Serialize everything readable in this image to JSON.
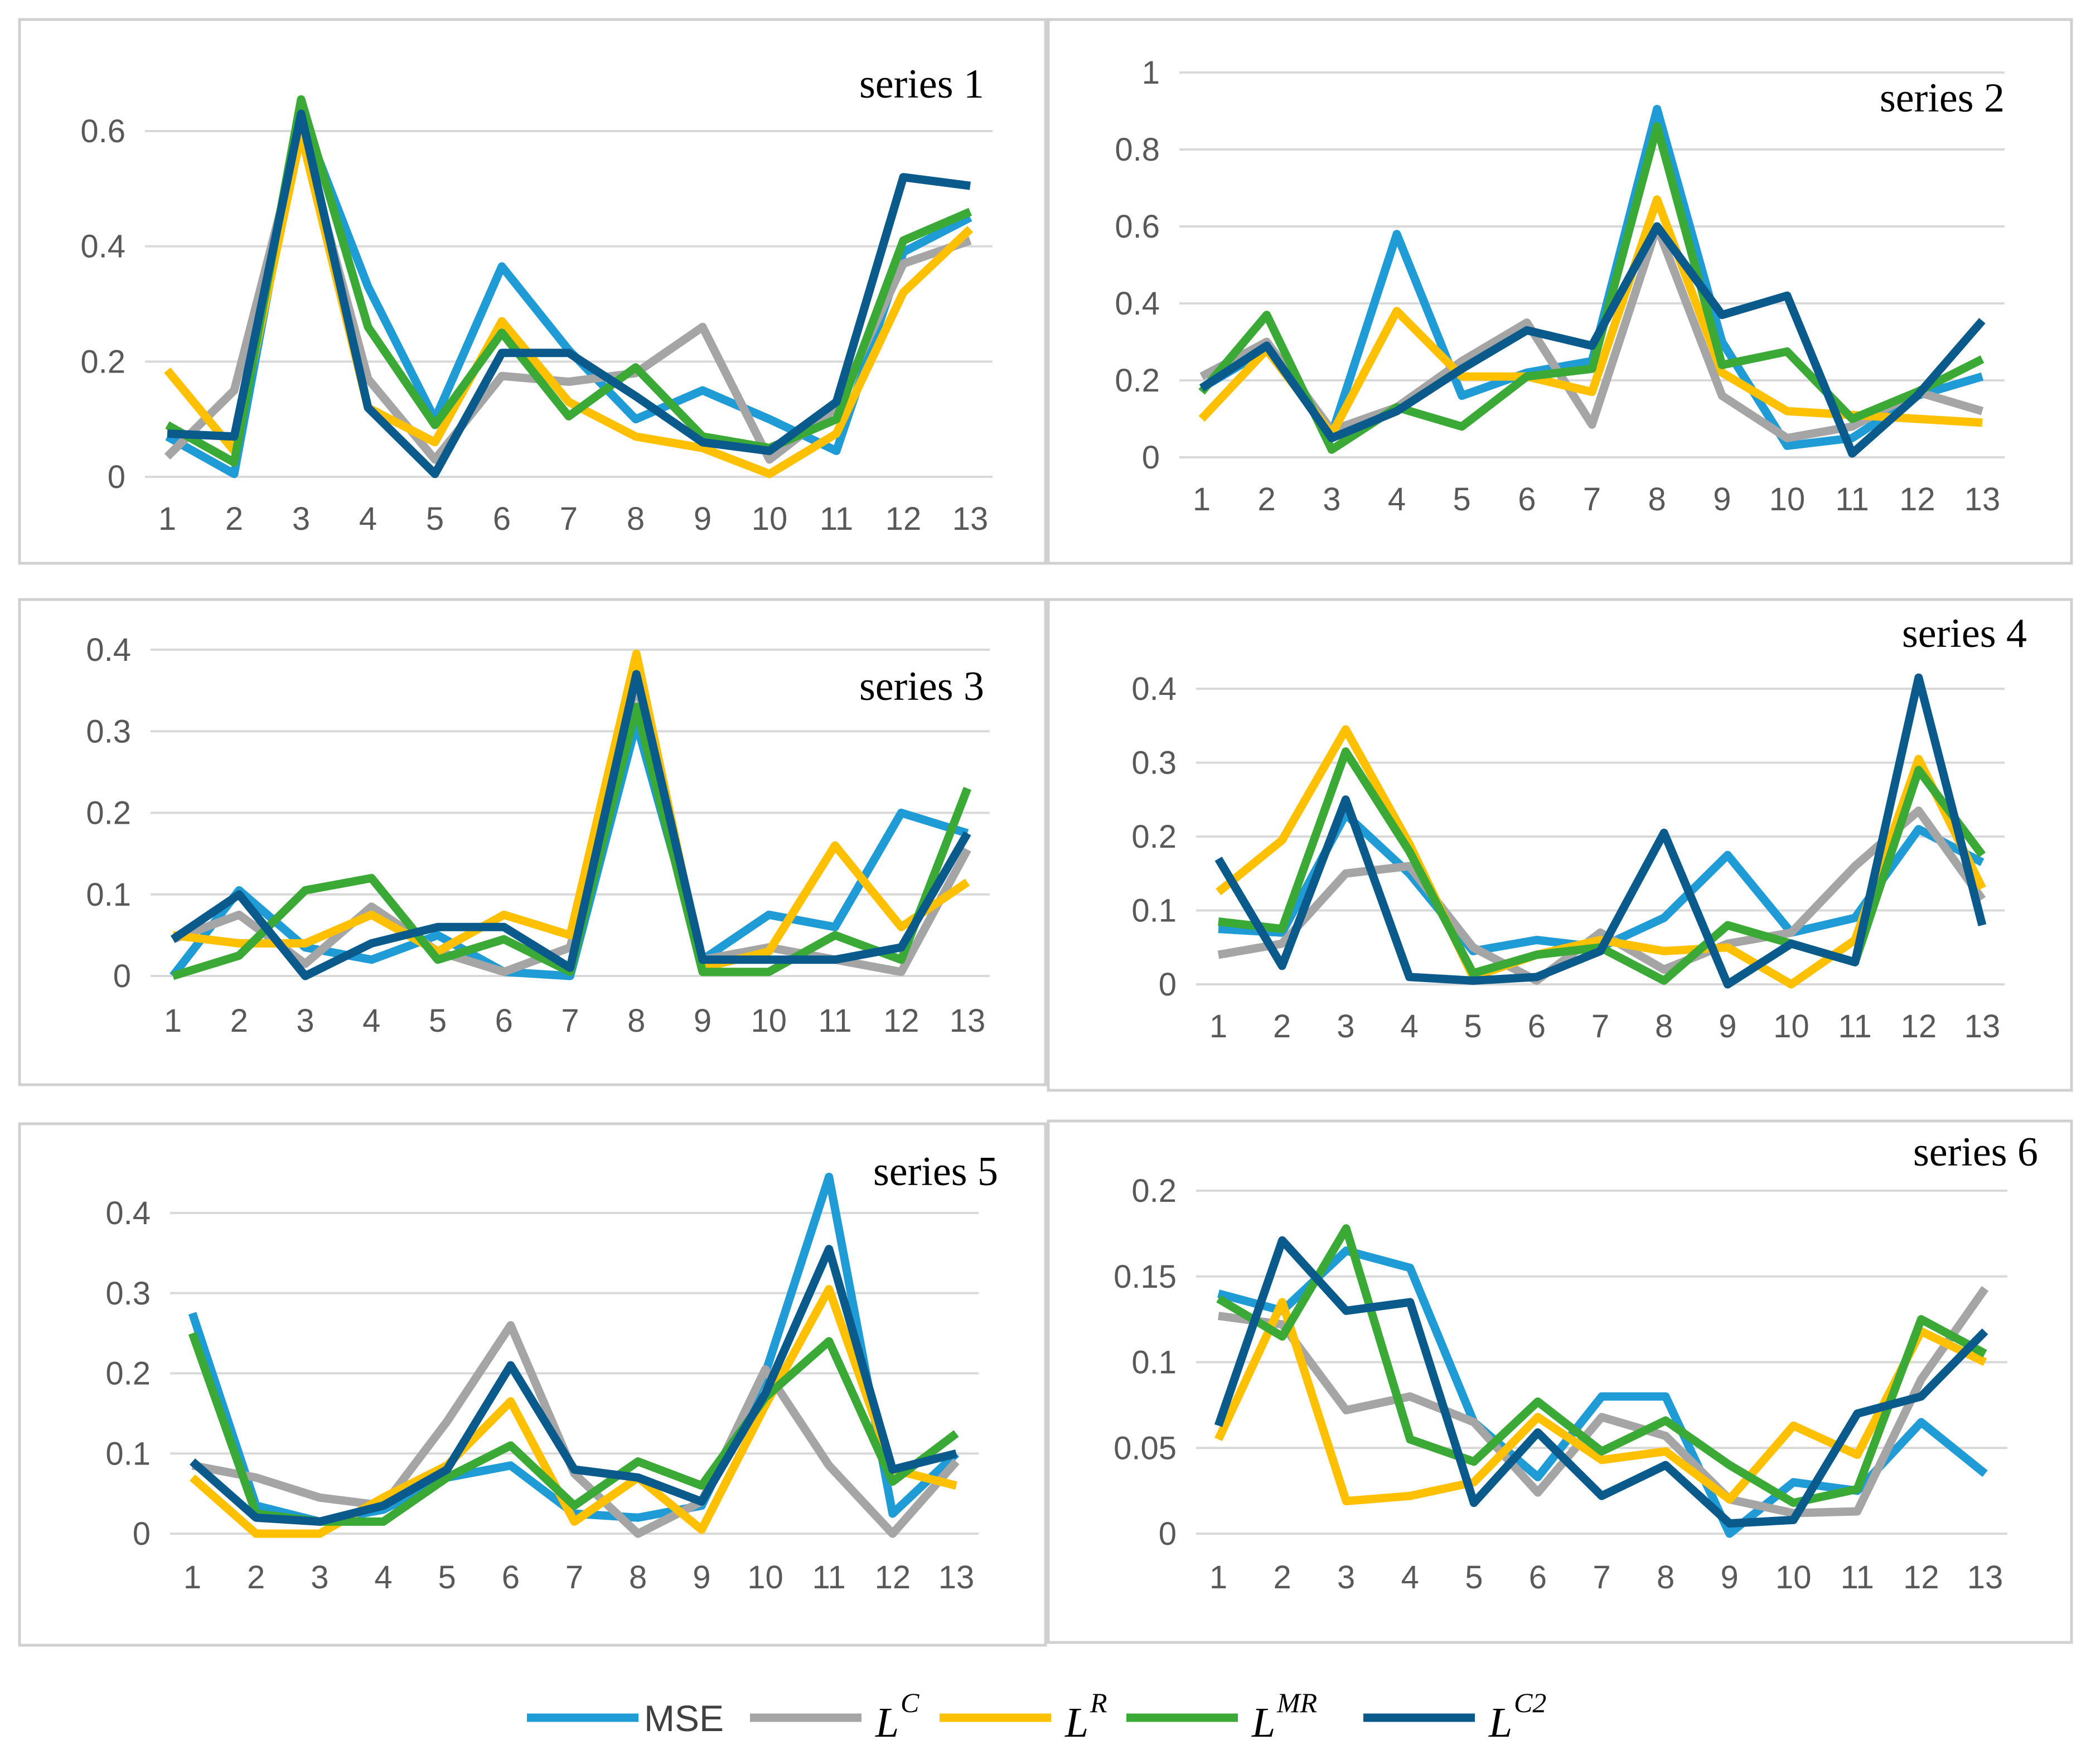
{
  "colors": {
    "MSE": "#1f9bd6",
    "LC": "#a5a5a5",
    "LR": "#ffc000",
    "LMR": "#3aa935",
    "LC2": "#0b5a8c"
  },
  "legend": [
    {
      "key": "MSE",
      "text": "MSE",
      "math": false
    },
    {
      "key": "LC",
      "base": "L",
      "sup": "C",
      "math": true
    },
    {
      "key": "LR",
      "base": "L",
      "sup": "R",
      "math": true
    },
    {
      "key": "LMR",
      "base": "L",
      "sup": "MR",
      "math": true
    },
    {
      "key": "LC2",
      "base": "L",
      "sup": "C2",
      "math": true
    }
  ],
  "chart_data": [
    {
      "type": "line",
      "title": "series 1",
      "categories": [
        "1",
        "2",
        "3",
        "4",
        "5",
        "6",
        "7",
        "8",
        "9",
        "10",
        "11",
        "12",
        "13"
      ],
      "ylim": [
        0,
        0.6
      ],
      "yticks": [
        0,
        0.2,
        0.4,
        0.6
      ],
      "ytick_labels": [
        "0",
        "0.2",
        "0.4",
        "0.6"
      ],
      "series": [
        {
          "name": "MSE",
          "values": [
            0.07,
            0.005,
            0.63,
            0.33,
            0.1,
            0.365,
            0.22,
            0.1,
            0.15,
            0.1,
            0.045,
            0.39,
            0.45
          ]
        },
        {
          "name": "LC",
          "values": [
            0.035,
            0.15,
            0.6,
            0.17,
            0.03,
            0.175,
            0.165,
            0.18,
            0.26,
            0.03,
            0.12,
            0.37,
            0.41
          ]
        },
        {
          "name": "LR",
          "values": [
            0.185,
            0.045,
            0.595,
            0.12,
            0.06,
            0.27,
            0.13,
            0.07,
            0.05,
            0.005,
            0.075,
            0.32,
            0.43
          ]
        },
        {
          "name": "LMR",
          "values": [
            0.09,
            0.025,
            0.655,
            0.26,
            0.09,
            0.25,
            0.105,
            0.19,
            0.07,
            0.05,
            0.1,
            0.41,
            0.46
          ]
        },
        {
          "name": "LC2",
          "values": [
            0.075,
            0.07,
            0.63,
            0.12,
            0.005,
            0.215,
            0.215,
            0.14,
            0.06,
            0.045,
            0.13,
            0.52,
            0.505
          ]
        }
      ]
    },
    {
      "type": "line",
      "title": "series 2",
      "categories": [
        "1",
        "2",
        "3",
        "4",
        "5",
        "6",
        "7",
        "8",
        "9",
        "10",
        "11",
        "12",
        "13"
      ],
      "ylim": [
        0,
        1
      ],
      "yticks": [
        0,
        0.2,
        0.4,
        0.6,
        0.8,
        1
      ],
      "ytick_labels": [
        "0",
        "0.2",
        "0.4",
        "0.6",
        "0.8",
        "1"
      ],
      "series": [
        {
          "name": "MSE",
          "values": [
            0.18,
            0.28,
            0.06,
            0.58,
            0.16,
            0.22,
            0.25,
            0.905,
            0.3,
            0.03,
            0.05,
            0.16,
            0.21
          ]
        },
        {
          "name": "LC",
          "values": [
            0.21,
            0.3,
            0.07,
            0.13,
            0.25,
            0.35,
            0.085,
            0.6,
            0.16,
            0.05,
            0.08,
            0.17,
            0.12
          ]
        },
        {
          "name": "LR",
          "values": [
            0.1,
            0.28,
            0.06,
            0.38,
            0.21,
            0.21,
            0.17,
            0.67,
            0.22,
            0.12,
            0.11,
            0.1,
            0.09
          ]
        },
        {
          "name": "LMR",
          "values": [
            0.17,
            0.37,
            0.02,
            0.13,
            0.08,
            0.21,
            0.23,
            0.86,
            0.24,
            0.275,
            0.1,
            0.17,
            0.255
          ]
        },
        {
          "name": "LC2",
          "values": [
            0.18,
            0.29,
            0.05,
            0.12,
            0.23,
            0.33,
            0.29,
            0.6,
            0.37,
            0.42,
            0.01,
            0.16,
            0.355
          ]
        }
      ]
    },
    {
      "type": "line",
      "title": "series 3",
      "categories": [
        "1",
        "2",
        "3",
        "4",
        "5",
        "6",
        "7",
        "8",
        "9",
        "10",
        "11",
        "12",
        "13"
      ],
      "ylim": [
        0,
        0.4
      ],
      "yticks": [
        0,
        0.1,
        0.2,
        0.3,
        0.4
      ],
      "ytick_labels": [
        "0",
        "0.1",
        "0.2",
        "0.3",
        "0.4"
      ],
      "series": [
        {
          "name": "MSE",
          "values": [
            0.0,
            0.105,
            0.035,
            0.02,
            0.05,
            0.005,
            0.0,
            0.31,
            0.02,
            0.075,
            0.06,
            0.2,
            0.175
          ]
        },
        {
          "name": "LC",
          "values": [
            0.045,
            0.075,
            0.015,
            0.085,
            0.03,
            0.005,
            0.035,
            0.36,
            0.02,
            0.035,
            0.02,
            0.005,
            0.155
          ]
        },
        {
          "name": "LR",
          "values": [
            0.05,
            0.04,
            0.04,
            0.075,
            0.03,
            0.075,
            0.05,
            0.395,
            0.01,
            0.03,
            0.16,
            0.06,
            0.115
          ]
        },
        {
          "name": "LMR",
          "values": [
            0.0,
            0.025,
            0.105,
            0.12,
            0.02,
            0.045,
            0.005,
            0.33,
            0.005,
            0.005,
            0.05,
            0.02,
            0.23
          ]
        },
        {
          "name": "LC2",
          "values": [
            0.045,
            0.1,
            0.0,
            0.04,
            0.06,
            0.06,
            0.01,
            0.37,
            0.02,
            0.02,
            0.02,
            0.035,
            0.175
          ]
        }
      ]
    },
    {
      "type": "line",
      "title": "series 4",
      "categories": [
        "1",
        "2",
        "3",
        "4",
        "5",
        "6",
        "7",
        "8",
        "9",
        "10",
        "11",
        "12",
        "13"
      ],
      "ylim": [
        0,
        0.4
      ],
      "yticks": [
        0,
        0.1,
        0.2,
        0.3,
        0.4
      ],
      "ytick_labels": [
        "0",
        "0.1",
        "0.2",
        "0.3",
        "0.4"
      ],
      "series": [
        {
          "name": "MSE",
          "values": [
            0.075,
            0.07,
            0.23,
            0.15,
            0.045,
            0.06,
            0.05,
            0.09,
            0.175,
            0.07,
            0.09,
            0.21,
            0.165
          ]
        },
        {
          "name": "LC",
          "values": [
            0.04,
            0.055,
            0.15,
            0.16,
            0.05,
            0.005,
            0.07,
            0.02,
            0.055,
            0.07,
            0.16,
            0.235,
            0.115
          ]
        },
        {
          "name": "LR",
          "values": [
            0.125,
            0.195,
            0.345,
            0.19,
            0.01,
            0.04,
            0.06,
            0.045,
            0.05,
            0.0,
            0.06,
            0.305,
            0.13
          ]
        },
        {
          "name": "LMR",
          "values": [
            0.085,
            0.075,
            0.315,
            0.18,
            0.015,
            0.04,
            0.05,
            0.005,
            0.08,
            0.055,
            0.03,
            0.29,
            0.175
          ]
        },
        {
          "name": "LC2",
          "values": [
            0.17,
            0.025,
            0.25,
            0.01,
            0.005,
            0.01,
            0.045,
            0.205,
            0.0,
            0.055,
            0.03,
            0.415,
            0.08
          ]
        }
      ]
    },
    {
      "type": "line",
      "title": "series 5",
      "categories": [
        "1",
        "2",
        "3",
        "4",
        "5",
        "6",
        "7",
        "8",
        "9",
        "10",
        "11",
        "12",
        "13"
      ],
      "ylim": [
        0,
        0.4
      ],
      "yticks": [
        0,
        0.1,
        0.2,
        0.3,
        0.4
      ],
      "ytick_labels": [
        "0",
        "0.1",
        "0.2",
        "0.3",
        "0.4"
      ],
      "series": [
        {
          "name": "MSE",
          "values": [
            0.275,
            0.035,
            0.015,
            0.03,
            0.07,
            0.085,
            0.025,
            0.02,
            0.035,
            0.2,
            0.445,
            0.025,
            0.1
          ]
        },
        {
          "name": "LC",
          "values": [
            0.085,
            0.07,
            0.045,
            0.035,
            0.14,
            0.26,
            0.075,
            0.0,
            0.04,
            0.205,
            0.085,
            0.0,
            0.09
          ]
        },
        {
          "name": "LR",
          "values": [
            0.07,
            0.0,
            0.0,
            0.045,
            0.085,
            0.165,
            0.015,
            0.07,
            0.005,
            0.16,
            0.305,
            0.08,
            0.06
          ]
        },
        {
          "name": "LMR",
          "values": [
            0.25,
            0.025,
            0.015,
            0.015,
            0.07,
            0.11,
            0.035,
            0.09,
            0.06,
            0.17,
            0.24,
            0.065,
            0.125
          ]
        },
        {
          "name": "LC2",
          "values": [
            0.09,
            0.02,
            0.015,
            0.035,
            0.08,
            0.21,
            0.08,
            0.07,
            0.04,
            0.175,
            0.355,
            0.08,
            0.1
          ]
        }
      ]
    },
    {
      "type": "line",
      "title": "series 6",
      "categories": [
        "1",
        "2",
        "3",
        "4",
        "5",
        "6",
        "7",
        "8",
        "9",
        "10",
        "11",
        "12",
        "13"
      ],
      "ylim": [
        0,
        0.2
      ],
      "yticks": [
        0,
        0.05,
        0.1,
        0.15,
        0.2
      ],
      "ytick_labels": [
        "0",
        "0.05",
        "0.1",
        "0.15",
        "0.2"
      ],
      "series": [
        {
          "name": "MSE",
          "values": [
            0.14,
            0.13,
            0.165,
            0.155,
            0.065,
            0.033,
            0.08,
            0.08,
            0.0,
            0.03,
            0.025,
            0.065,
            0.035
          ]
        },
        {
          "name": "LC",
          "values": [
            0.127,
            0.122,
            0.072,
            0.08,
            0.065,
            0.024,
            0.068,
            0.057,
            0.02,
            0.012,
            0.013,
            0.09,
            0.143
          ]
        },
        {
          "name": "LR",
          "values": [
            0.055,
            0.135,
            0.019,
            0.022,
            0.03,
            0.068,
            0.043,
            0.048,
            0.02,
            0.063,
            0.046,
            0.118,
            0.1
          ]
        },
        {
          "name": "LMR",
          "values": [
            0.137,
            0.115,
            0.178,
            0.055,
            0.042,
            0.077,
            0.048,
            0.066,
            0.04,
            0.018,
            0.026,
            0.125,
            0.105
          ]
        },
        {
          "name": "LC2",
          "values": [
            0.063,
            0.171,
            0.13,
            0.135,
            0.018,
            0.059,
            0.022,
            0.04,
            0.006,
            0.008,
            0.07,
            0.08,
            0.118
          ]
        }
      ]
    }
  ]
}
